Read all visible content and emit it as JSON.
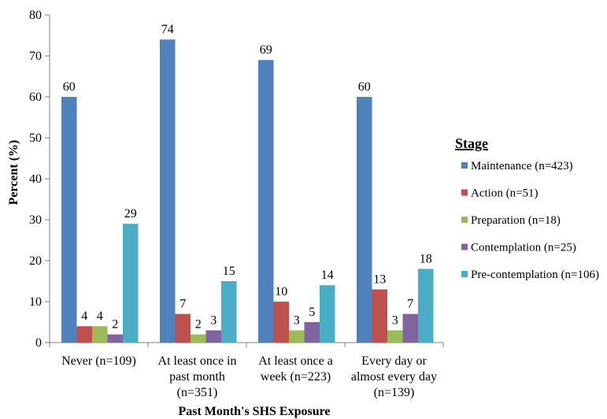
{
  "chart_data": {
    "type": "bar",
    "xlabel": "Past Month's SHS Exposure",
    "ylabel": "Percent (%)",
    "ylim": [
      0,
      80
    ],
    "yticks": [
      0,
      10,
      20,
      30,
      40,
      50,
      60,
      70,
      80
    ],
    "grid": false,
    "legend_title": "Stage",
    "legend_position": "right",
    "categories": [
      [
        "Never (n=109)"
      ],
      [
        "At least once in",
        "past month",
        "(n=351)"
      ],
      [
        "At least once a",
        "week (n=223)"
      ],
      [
        "Every day or",
        "almost every day",
        "(n=139)"
      ]
    ],
    "series": [
      {
        "name": "Maintenance (n=423)",
        "color": "#4F81BD",
        "values": [
          60,
          74,
          69,
          60
        ]
      },
      {
        "name": "Action (n=51)",
        "color": "#C0504D",
        "values": [
          4,
          7,
          10,
          13
        ]
      },
      {
        "name": "Preparation (n=18)",
        "color": "#9BBB59",
        "values": [
          4,
          2,
          3,
          3
        ]
      },
      {
        "name": "Contemplation (n=25)",
        "color": "#8064A2",
        "values": [
          2,
          3,
          5,
          7
        ]
      },
      {
        "name": "Pre-contemplation (n=106)",
        "color": "#4BACC6",
        "values": [
          29,
          15,
          14,
          18
        ]
      }
    ]
  }
}
